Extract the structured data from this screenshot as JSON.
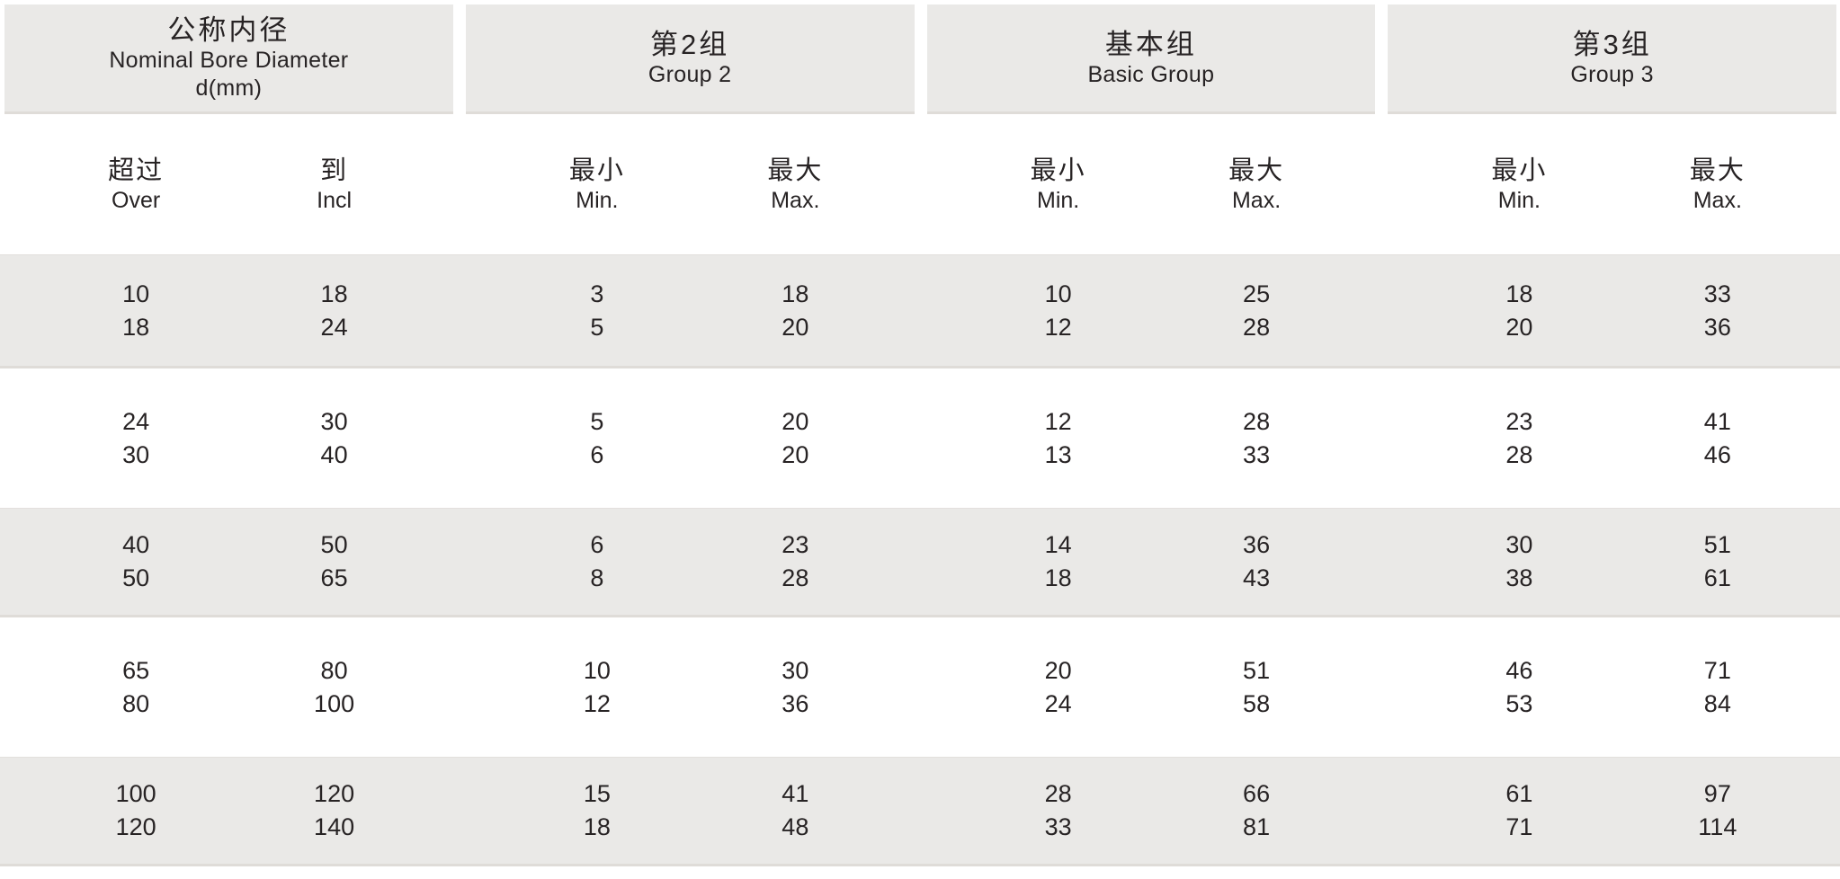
{
  "colors": {
    "page_bg": "#ffffff",
    "band_shaded": "#eae9e7",
    "band_edge": "#dfdcd8",
    "text": "#272324"
  },
  "table": {
    "groups": [
      {
        "header_zh": "公称内径",
        "header_en": "Nominal Bore Diameter",
        "header_sub": "d(mm)",
        "columns": [
          {
            "zh": "超过",
            "en": "Over"
          },
          {
            "zh": "到",
            "en": "Incl"
          }
        ]
      },
      {
        "header_zh": "第2组",
        "header_en": "Group 2",
        "columns": [
          {
            "zh": "最小",
            "en": "Min."
          },
          {
            "zh": "最大",
            "en": "Max."
          }
        ]
      },
      {
        "header_zh": "基本组",
        "header_en": "Basic Group",
        "columns": [
          {
            "zh": "最小",
            "en": "Min."
          },
          {
            "zh": "最大",
            "en": "Max."
          }
        ]
      },
      {
        "header_zh": "第3组",
        "header_en": "Group 3",
        "columns": [
          {
            "zh": "最小",
            "en": "Min."
          },
          {
            "zh": "最大",
            "en": "Max."
          }
        ]
      }
    ],
    "bands": [
      {
        "shaded": true,
        "rows": [
          [
            "10",
            "18",
            "3",
            "18",
            "10",
            "25",
            "18",
            "33"
          ],
          [
            "18",
            "24",
            "5",
            "20",
            "12",
            "28",
            "20",
            "36"
          ]
        ]
      },
      {
        "shaded": false,
        "rows": [
          [
            "24",
            "30",
            "5",
            "20",
            "12",
            "28",
            "23",
            "41"
          ],
          [
            "30",
            "40",
            "6",
            "20",
            "13",
            "33",
            "28",
            "46"
          ]
        ]
      },
      {
        "shaded": true,
        "rows": [
          [
            "40",
            "50",
            "6",
            "23",
            "14",
            "36",
            "30",
            "51"
          ],
          [
            "50",
            "65",
            "8",
            "28",
            "18",
            "43",
            "38",
            "61"
          ]
        ]
      },
      {
        "shaded": false,
        "rows": [
          [
            "65",
            "80",
            "10",
            "30",
            "20",
            "51",
            "46",
            "71"
          ],
          [
            "80",
            "100",
            "12",
            "36",
            "24",
            "58",
            "53",
            "84"
          ]
        ]
      },
      {
        "shaded": true,
        "rows": [
          [
            "100",
            "120",
            "15",
            "41",
            "28",
            "66",
            "61",
            "97"
          ],
          [
            "120",
            "140",
            "18",
            "48",
            "33",
            "81",
            "71",
            "114"
          ]
        ]
      }
    ]
  }
}
